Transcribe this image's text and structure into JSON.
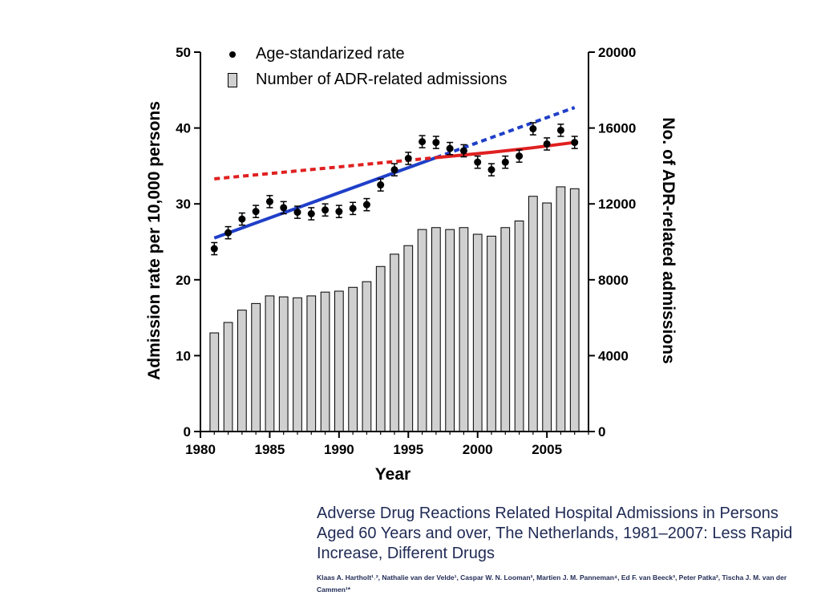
{
  "chart_data": {
    "type": "bar",
    "title": "",
    "xlabel": "Year",
    "ylabel": "Admission rate per 10,000 persons",
    "y2label": "No. of ADR-related admissions",
    "xlim": [
      1980,
      2008
    ],
    "ylim": [
      0,
      50
    ],
    "y2lim": [
      0,
      20000
    ],
    "xticks": [
      "1980",
      "1985",
      "1990",
      "1995",
      "2000",
      "2005"
    ],
    "yticks": [
      "0",
      "10",
      "20",
      "30",
      "40",
      "50"
    ],
    "y2ticks": [
      "0",
      "4000",
      "8000",
      "12000",
      "16000",
      "20000"
    ],
    "years": [
      1981,
      1982,
      1983,
      1984,
      1985,
      1986,
      1987,
      1988,
      1989,
      1990,
      1991,
      1992,
      1993,
      1994,
      1995,
      1996,
      1997,
      1998,
      1999,
      2000,
      2001,
      2002,
      2003,
      2004,
      2005,
      2006,
      2007
    ],
    "legend": {
      "placement": "top-left",
      "entries": [
        "Age-standarized rate",
        "Number of ADR-related admissions"
      ]
    },
    "series": [
      {
        "name": "Number of ADR-related admissions",
        "kind": "bar",
        "axis": "right",
        "color": "#d0d0d0",
        "values": [
          5200,
          5750,
          6400,
          6750,
          7150,
          7100,
          7050,
          7150,
          7350,
          7400,
          7600,
          7900,
          8700,
          9350,
          9800,
          10650,
          10750,
          10650,
          10750,
          10400,
          10300,
          10750,
          11100,
          12400,
          12050,
          12900,
          12800
        ]
      },
      {
        "name": "Age-standarized rate",
        "kind": "scatter",
        "axis": "left",
        "color": "#000000",
        "values": [
          24.1,
          26.2,
          28.0,
          29.0,
          30.3,
          29.5,
          28.9,
          28.7,
          29.2,
          29.0,
          29.4,
          29.9,
          32.5,
          34.5,
          36.0,
          38.2,
          38.1,
          37.3,
          37.0,
          35.5,
          34.5,
          35.5,
          36.3,
          39.9,
          37.9,
          39.7,
          38.1
        ],
        "error": 0.8
      }
    ],
    "trend_lines": [
      {
        "color": "#1f3fc8",
        "dash": false,
        "points": [
          [
            1981,
            25.5
          ],
          [
            1997,
            36.1
          ]
        ]
      },
      {
        "color": "#1f3fc8",
        "dash": true,
        "points": [
          [
            1997,
            36.1
          ],
          [
            2007,
            42.7
          ]
        ]
      },
      {
        "color": "#e02020",
        "dash": true,
        "points": [
          [
            1981,
            33.3
          ],
          [
            1997,
            36.1
          ]
        ]
      },
      {
        "color": "#e02020",
        "dash": false,
        "points": [
          [
            1997,
            36.1
          ],
          [
            2001,
            36.8
          ],
          [
            2004,
            37.4
          ],
          [
            2007,
            38.1
          ]
        ]
      }
    ]
  },
  "paper": {
    "title": "Adverse Drug Reactions Related Hospital Admissions in Persons Aged 60 Years and over, The Netherlands, 1981–2007: Less Rapid Increase, Different Drugs",
    "authors": "Klaas A. Hartholt¹˒², Nathalie van der Velde¹, Caspar W. N. Looman³, Martien J. M. Panneman⁴, Ed F. van Beeck³, Peter Patka², Tischa J. M. van der Cammen¹*"
  }
}
